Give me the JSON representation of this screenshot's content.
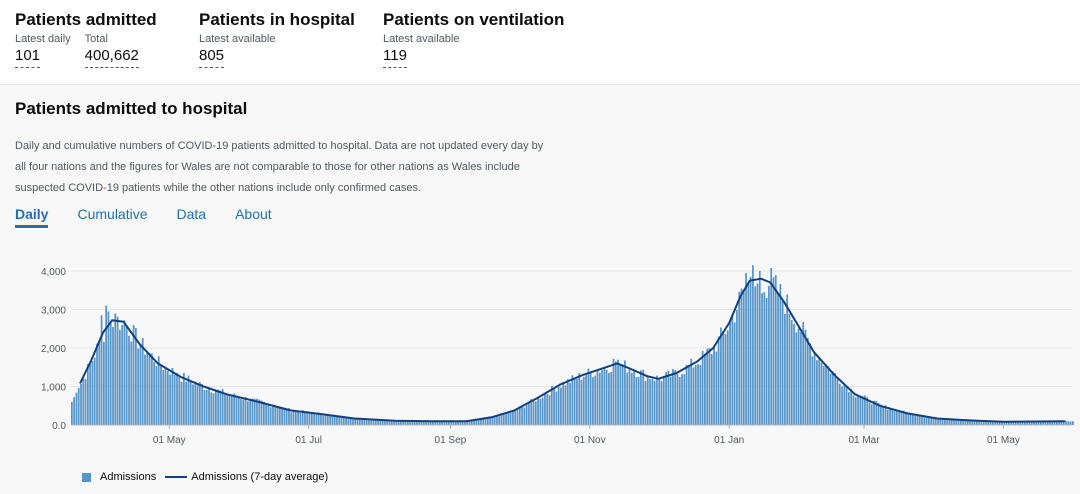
{
  "summary": {
    "admitted": {
      "title": "Patients admitted",
      "daily_label": "Latest daily",
      "daily_value": "101",
      "total_label": "Total",
      "total_value": "400,662"
    },
    "hospital": {
      "title": "Patients in hospital",
      "label": "Latest available",
      "value": "805"
    },
    "ventilation": {
      "title": "Patients on ventilation",
      "label": "Latest available",
      "value": "119"
    }
  },
  "card": {
    "title": "Patients admitted to hospital",
    "description": "Daily and cumulative numbers of COVID-19 patients admitted to hospital. Data are not updated every day by all four nations and the figures for Wales are not comparable to those for other nations as Wales include suspected COVID-19 patients while the other nations include only confirmed cases.",
    "tabs": [
      {
        "label": "Daily",
        "active": true
      },
      {
        "label": "Cumulative",
        "active": false
      },
      {
        "label": "Data",
        "active": false
      },
      {
        "label": "About",
        "active": false
      }
    ]
  },
  "colors": {
    "bar": "#5694ca",
    "line": "#12407f",
    "tab": "#1d70b8"
  },
  "chart_data": {
    "type": "bar",
    "x_start": "2020-03-19",
    "x_end": "2021-05-31",
    "ylim": [
      0,
      4000
    ],
    "yticks": [
      "0.0",
      "1,000",
      "2,000",
      "3,000",
      "4,000"
    ],
    "xticks": [
      {
        "date": "2020-05-01",
        "label": "01 May"
      },
      {
        "date": "2020-07-01",
        "label": "01 Jul"
      },
      {
        "date": "2020-09-01",
        "label": "01 Sep"
      },
      {
        "date": "2020-11-01",
        "label": "01 Nov"
      },
      {
        "date": "2021-01-01",
        "label": "01 Jan"
      },
      {
        "date": "2021-03-01",
        "label": "01 Mar"
      },
      {
        "date": "2021-05-01",
        "label": "01 May"
      }
    ],
    "grid": true,
    "legend": [
      "Admissions",
      "Admissions (7-day average)"
    ],
    "series": [
      {
        "name": "Admissions (7-day average)",
        "points": [
          [
            "2020-03-23",
            1080
          ],
          [
            "2020-03-28",
            1700
          ],
          [
            "2020-04-02",
            2400
          ],
          [
            "2020-04-06",
            2720
          ],
          [
            "2020-04-11",
            2680
          ],
          [
            "2020-04-18",
            2100
          ],
          [
            "2020-04-26",
            1600
          ],
          [
            "2020-05-06",
            1250
          ],
          [
            "2020-05-16",
            1000
          ],
          [
            "2020-05-26",
            800
          ],
          [
            "2020-06-09",
            600
          ],
          [
            "2020-06-23",
            380
          ],
          [
            "2020-07-07",
            280
          ],
          [
            "2020-07-21",
            170
          ],
          [
            "2020-08-08",
            110
          ],
          [
            "2020-08-24",
            95
          ],
          [
            "2020-09-08",
            100
          ],
          [
            "2020-09-19",
            200
          ],
          [
            "2020-09-29",
            380
          ],
          [
            "2020-10-09",
            700
          ],
          [
            "2020-10-19",
            1050
          ],
          [
            "2020-10-29",
            1300
          ],
          [
            "2020-11-08",
            1500
          ],
          [
            "2020-11-13",
            1600
          ],
          [
            "2020-11-18",
            1480
          ],
          [
            "2020-11-26",
            1270
          ],
          [
            "2020-12-01",
            1200
          ],
          [
            "2020-12-09",
            1350
          ],
          [
            "2020-12-18",
            1650
          ],
          [
            "2020-12-25",
            2000
          ],
          [
            "2021-01-01",
            2650
          ],
          [
            "2021-01-06",
            3350
          ],
          [
            "2021-01-10",
            3750
          ],
          [
            "2021-01-15",
            3800
          ],
          [
            "2021-01-19",
            3700
          ],
          [
            "2021-01-25",
            3200
          ],
          [
            "2021-01-31",
            2600
          ],
          [
            "2021-02-07",
            1900
          ],
          [
            "2021-02-16",
            1300
          ],
          [
            "2021-02-25",
            800
          ],
          [
            "2021-03-08",
            500
          ],
          [
            "2021-03-20",
            300
          ],
          [
            "2021-04-02",
            170
          ],
          [
            "2021-04-16",
            120
          ],
          [
            "2021-05-01",
            85
          ],
          [
            "2021-05-15",
            90
          ],
          [
            "2021-05-28",
            100
          ]
        ]
      }
    ],
    "spikes": [
      [
        "2020-04-01",
        2850
      ],
      [
        "2020-04-03",
        3100
      ],
      [
        "2020-04-04",
        2950
      ],
      [
        "2020-04-07",
        2900
      ],
      [
        "2020-04-10",
        2600
      ],
      [
        "2020-05-04",
        1350
      ],
      [
        "2020-11-11",
        1720
      ],
      [
        "2020-11-12",
        1650
      ],
      [
        "2021-01-08",
        3950
      ],
      [
        "2021-01-11",
        4150
      ],
      [
        "2021-01-12",
        3600
      ],
      [
        "2021-01-14",
        4000
      ],
      [
        "2021-01-17",
        3300
      ]
    ]
  }
}
